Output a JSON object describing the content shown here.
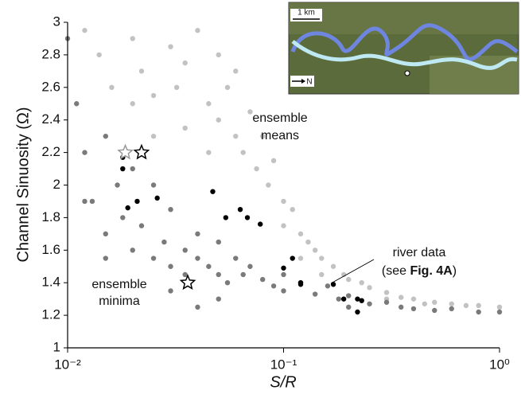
{
  "chart_data": {
    "type": "scatter",
    "xlabel": "S/R",
    "ylabel": "Channel Sinuosity (Ω)",
    "xlim": [
      0.01,
      1
    ],
    "xlog": true,
    "xticks": [
      {
        "value": 0.01,
        "label": "10⁻²"
      },
      {
        "value": 0.1,
        "label": "10⁻¹"
      },
      {
        "value": 1,
        "label": "10⁰"
      }
    ],
    "ylim": [
      1,
      3
    ],
    "yticks": [
      1,
      1.2,
      1.4,
      1.6,
      1.8,
      2,
      2.2,
      2.4,
      2.6,
      2.8,
      3
    ],
    "annotations": [
      {
        "lines": [
          "ensemble",
          "means"
        ]
      },
      {
        "lines": [
          "ensemble",
          "minima"
        ]
      },
      {
        "lines": [
          "river data"
        ],
        "parts": [
          "(see ",
          "Fig. 4A",
          ")"
        ]
      }
    ],
    "inset": {
      "scale_label": "1 km",
      "north_label": "N"
    },
    "series": [
      {
        "marker": "circle",
        "color": "#c2c2c2",
        "x": [
          0.012,
          0.014,
          0.016,
          0.02,
          0.022,
          0.025,
          0.03,
          0.032,
          0.035,
          0.04,
          0.045,
          0.05,
          0.05,
          0.055,
          0.06,
          0.06,
          0.065,
          0.07,
          0.075,
          0.08,
          0.085,
          0.09,
          0.1,
          0.1,
          0.11,
          0.12,
          0.13,
          0.14,
          0.15,
          0.17,
          0.19,
          0.2,
          0.23,
          0.25,
          0.3,
          0.35,
          0.4,
          0.5,
          0.6,
          0.7,
          0.8,
          1.0,
          0.15,
          0.12,
          0.3,
          0.45,
          0.025,
          0.02,
          0.035,
          0.045
        ],
        "y": [
          2.95,
          2.8,
          2.6,
          2.9,
          2.7,
          2.55,
          2.85,
          2.6,
          2.75,
          2.95,
          2.5,
          2.8,
          2.4,
          2.6,
          2.3,
          2.7,
          2.2,
          2.45,
          2.1,
          2.3,
          2.0,
          2.15,
          1.9,
          1.75,
          1.85,
          1.7,
          1.65,
          1.6,
          1.55,
          1.5,
          1.45,
          1.42,
          1.4,
          1.37,
          1.34,
          1.31,
          1.3,
          1.28,
          1.27,
          1.26,
          1.26,
          1.25,
          1.45,
          1.55,
          1.3,
          1.27,
          2.3,
          2.5,
          2.35,
          2.2
        ]
      },
      {
        "marker": "circle",
        "color": "#7a7a7a",
        "x": [
          0.01,
          0.011,
          0.012,
          0.013,
          0.015,
          0.015,
          0.017,
          0.018,
          0.02,
          0.02,
          0.022,
          0.025,
          0.025,
          0.028,
          0.03,
          0.03,
          0.035,
          0.035,
          0.04,
          0.04,
          0.045,
          0.05,
          0.05,
          0.055,
          0.06,
          0.065,
          0.07,
          0.08,
          0.09,
          0.1,
          0.1,
          0.12,
          0.14,
          0.16,
          0.18,
          0.2,
          0.25,
          0.3,
          0.35,
          0.4,
          0.5,
          0.6,
          0.8,
          1.0,
          0.2,
          0.03,
          0.04,
          0.015,
          0.012,
          0.05
        ],
        "y": [
          2.9,
          2.5,
          2.2,
          1.9,
          2.3,
          1.7,
          2.0,
          1.8,
          1.6,
          2.1,
          1.75,
          1.55,
          2.0,
          1.65,
          1.5,
          1.85,
          1.6,
          1.45,
          1.7,
          1.55,
          1.5,
          1.65,
          1.45,
          1.4,
          1.55,
          1.45,
          1.5,
          1.42,
          1.38,
          1.45,
          1.35,
          1.4,
          1.33,
          1.38,
          1.3,
          1.32,
          1.27,
          1.28,
          1.25,
          1.24,
          1.23,
          1.24,
          1.22,
          1.22,
          1.25,
          1.35,
          1.25,
          1.55,
          1.9,
          1.3
        ]
      },
      {
        "marker": "circle",
        "color": "#000000",
        "x": [
          0.018,
          0.018,
          0.019,
          0.021,
          0.026,
          0.047,
          0.054,
          0.063,
          0.068,
          0.078,
          0.1,
          0.11,
          0.12,
          0.12,
          0.17,
          0.19,
          0.22,
          0.23,
          0.22
        ],
        "y": [
          2.1,
          2.17,
          1.86,
          1.9,
          1.92,
          1.96,
          1.8,
          1.85,
          1.8,
          1.76,
          1.49,
          1.55,
          1.4,
          1.39,
          1.39,
          1.3,
          1.3,
          1.29,
          1.22
        ]
      },
      {
        "marker": "star",
        "color": "#999999",
        "x": [
          0.0185
        ],
        "y": [
          2.2
        ]
      },
      {
        "marker": "star",
        "color": "#000000",
        "x": [
          0.022,
          0.036
        ],
        "y": [
          2.2,
          1.4
        ]
      }
    ]
  }
}
